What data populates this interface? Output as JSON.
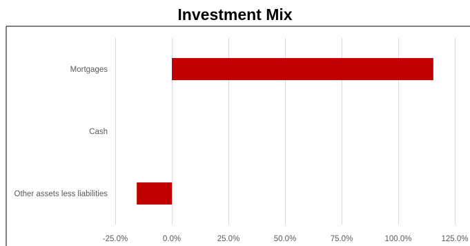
{
  "chart_data": {
    "type": "bar",
    "orientation": "horizontal",
    "title": "Investment Mix",
    "xlabel": "",
    "ylabel": "",
    "categories": [
      "Mortgages",
      "Cash",
      "Other assets less liabilities"
    ],
    "values": [
      115.5,
      0.0,
      -15.5
    ],
    "xlim": [
      -25,
      125
    ],
    "xticks": [
      -25,
      0,
      25,
      50,
      75,
      100,
      125
    ],
    "xtick_labels": [
      "-25.0%",
      "0.0%",
      "25.0%",
      "50.0%",
      "75.0%",
      "100.0%",
      "125.0%"
    ],
    "grid": "vertical",
    "legend": "none",
    "bar_color": "#C00000",
    "grid_color": "#D9D9D9"
  }
}
